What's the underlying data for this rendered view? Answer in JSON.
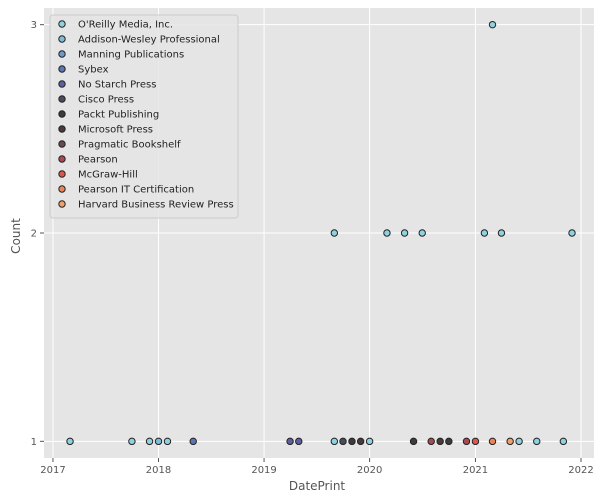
{
  "chart_data": {
    "type": "scatter",
    "title": "",
    "xlabel": "DatePrint",
    "ylabel": "Count",
    "xlim": [
      "2016-12-01",
      "2022-02-15"
    ],
    "ylim": [
      0.92,
      3.08
    ],
    "x_ticks": [
      "2017",
      "2018",
      "2019",
      "2020",
      "2021",
      "2022"
    ],
    "y_ticks": [
      "1",
      "2",
      "3"
    ],
    "grid": true,
    "legend_position": "top-left",
    "series": [
      {
        "name": "O'Reilly Media, Inc.",
        "color": "#8ed2e0",
        "points": [
          {
            "x": "2017-03-01",
            "y": 1
          },
          {
            "x": "2017-10-01",
            "y": 1
          },
          {
            "x": "2017-12-01",
            "y": 1
          },
          {
            "x": "2018-02-01",
            "y": 1
          },
          {
            "x": "2019-09-01",
            "y": 1
          },
          {
            "x": "2020-01-01",
            "y": 1
          },
          {
            "x": "2021-06-01",
            "y": 1
          },
          {
            "x": "2021-08-01",
            "y": 1
          },
          {
            "x": "2021-11-01",
            "y": 1
          },
          {
            "x": "2019-09-01",
            "y": 2
          },
          {
            "x": "2020-03-01",
            "y": 2
          },
          {
            "x": "2020-05-01",
            "y": 2
          },
          {
            "x": "2020-07-01",
            "y": 2
          },
          {
            "x": "2021-02-01",
            "y": 2
          },
          {
            "x": "2021-04-01",
            "y": 2
          },
          {
            "x": "2021-12-01",
            "y": 2
          },
          {
            "x": "2021-03-01",
            "y": 3
          }
        ]
      },
      {
        "name": "Addison-Wesley Professional",
        "color": "#7fbcd6",
        "points": [
          {
            "x": "2018-01-01",
            "y": 1
          }
        ]
      },
      {
        "name": "Manning Publications",
        "color": "#6b9ac9",
        "points": []
      },
      {
        "name": "Sybex",
        "color": "#5c76b3",
        "points": [
          {
            "x": "2018-05-01",
            "y": 1
          }
        ]
      },
      {
        "name": "No Starch Press",
        "color": "#5e5f9c",
        "points": [
          {
            "x": "2019-04-01",
            "y": 1
          },
          {
            "x": "2019-05-01",
            "y": 1
          }
        ]
      },
      {
        "name": "Cisco Press",
        "color": "#4a4b5c",
        "points": [
          {
            "x": "2019-10-01",
            "y": 1
          }
        ]
      },
      {
        "name": "Packt Publishing",
        "color": "#3c3c3c",
        "points": [
          {
            "x": "2019-11-01",
            "y": 1
          },
          {
            "x": "2020-06-01",
            "y": 1
          },
          {
            "x": "2020-10-01",
            "y": 1
          }
        ]
      },
      {
        "name": "Microsoft Press",
        "color": "#4a3a3a",
        "points": [
          {
            "x": "2019-12-01",
            "y": 1
          },
          {
            "x": "2020-09-01",
            "y": 1
          }
        ]
      },
      {
        "name": "Pragmatic Bookshelf",
        "color": "#6a4a4e",
        "points": []
      },
      {
        "name": "Pearson",
        "color": "#a84a52",
        "points": [
          {
            "x": "2020-08-01",
            "y": 1
          },
          {
            "x": "2020-12-01",
            "y": 1
          }
        ]
      },
      {
        "name": "McGraw-Hill",
        "color": "#d9584e",
        "points": [
          {
            "x": "2021-01-01",
            "y": 1
          }
        ]
      },
      {
        "name": "Pearson IT Certification",
        "color": "#e8845a",
        "points": [
          {
            "x": "2021-03-01",
            "y": 1
          }
        ]
      },
      {
        "name": "Harvard Business Review Press",
        "color": "#f0a06a",
        "points": [
          {
            "x": "2021-05-01",
            "y": 1
          }
        ]
      }
    ]
  }
}
